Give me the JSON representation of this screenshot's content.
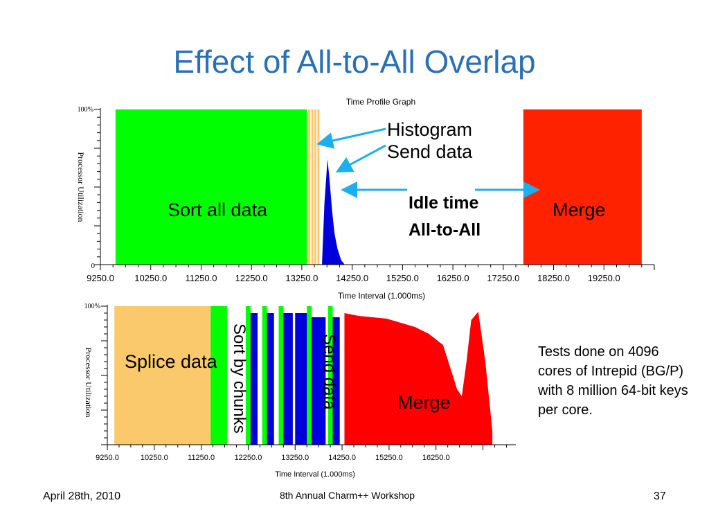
{
  "slide": {
    "title": "Effect of All-to-All Overlap",
    "note": "Tests done on 4096 cores of Intrepid (BG/P) with 8 million 64-bit keys per core.",
    "footer_date": "April 28th, 2010",
    "footer_center": "8th Annual Charm++ Workshop",
    "slide_number": "37"
  },
  "colors": {
    "title": "#2870b8",
    "sort": "#00ff00",
    "splice": "#f9c96b",
    "send": "#0000dd",
    "merge": "#ff2200",
    "merge_bottom": "#ff0000",
    "arrow": "#1ab0f0"
  },
  "chart_data": [
    {
      "type": "area",
      "title": "Time Profile Graph",
      "xlabel": "Time Interval (1.000ms)",
      "ylabel": "Processor Utilization",
      "x_ticks": [
        "9250.0",
        "10250.0",
        "11250.0",
        "12250.0",
        "13250.0",
        "14250.0",
        "15250.0",
        "16250.0",
        "17250.0",
        "18250.0",
        "19250.0"
      ],
      "y_ticks": [
        "100%",
        "0"
      ],
      "xlim": [
        9250,
        20250
      ],
      "ylim": [
        0,
        100
      ],
      "series": [
        {
          "name": "Sort all data",
          "color": "#00ff00",
          "segments": [
            [
              9550,
              13350,
              100
            ]
          ]
        },
        {
          "name": "Histogram",
          "color": "#f9c96b",
          "segments": [
            [
              13370,
              13420,
              100
            ],
            [
              13440,
              13480,
              100
            ],
            [
              13500,
              13540,
              100
            ],
            [
              13560,
              13600,
              100
            ]
          ]
        },
        {
          "name": "Send data",
          "color": "#0000dd",
          "peak": [
            [
              13650,
              0
            ],
            [
              13700,
              40
            ],
            [
              13760,
              68
            ],
            [
              13800,
              55
            ],
            [
              13850,
              35
            ],
            [
              13900,
              20
            ],
            [
              13960,
              10
            ],
            [
              14030,
              3
            ],
            [
              14100,
              0
            ]
          ]
        },
        {
          "name": "Merge",
          "color": "#ff2200",
          "segments": [
            [
              17650,
              20000,
              100
            ]
          ]
        }
      ],
      "annotations": {
        "section_left": "Sort all data",
        "histogram": "Histogram",
        "send": "Send data",
        "idle_line1": "Idle time",
        "idle_line2": "All-to-All",
        "section_right": "Merge"
      }
    },
    {
      "type": "area",
      "title": "",
      "xlabel": "Time Interval (1.000ms)",
      "ylabel": "Processor Utilization",
      "x_ticks": [
        "9250.0",
        "10250.0",
        "11250.0",
        "12250.0",
        "13250.0",
        "14250.0",
        "15250.0",
        "16250.0"
      ],
      "y_ticks": [
        "100%"
      ],
      "xlim": [
        9250,
        17950
      ],
      "ylim": [
        0,
        100
      ],
      "series": [
        {
          "name": "Splice data",
          "color": "#f9c96b",
          "segments": [
            [
              9400,
              11450,
              100
            ]
          ]
        },
        {
          "name": "Sort by chunks",
          "color": "#00ff00",
          "segments": [
            [
              11450,
              11800,
              100
            ],
            [
              12200,
              12300,
              100
            ],
            [
              12550,
              12650,
              100
            ],
            [
              12900,
              13000,
              100
            ],
            [
              13500,
              13600,
              100
            ],
            [
              13950,
              14050,
              100
            ]
          ]
        },
        {
          "name": "Send data",
          "color": "#0000dd",
          "segments": [
            [
              12300,
              12450,
              95
            ],
            [
              12650,
              12800,
              95
            ],
            [
              13000,
              13200,
              95
            ],
            [
              13250,
              13500,
              95
            ],
            [
              13600,
              13900,
              92
            ],
            [
              14050,
              14200,
              92
            ]
          ]
        },
        {
          "name": "Merge",
          "color": "#ff0000",
          "profile": [
            [
              14300,
              95
            ],
            [
              14600,
              93
            ],
            [
              14900,
              92
            ],
            [
              15200,
              91
            ],
            [
              15500,
              88
            ],
            [
              15800,
              85
            ],
            [
              16100,
              80
            ],
            [
              16400,
              72
            ],
            [
              16700,
              40
            ],
            [
              16800,
              35
            ],
            [
              16900,
              60
            ],
            [
              17000,
              90
            ],
            [
              17150,
              96
            ],
            [
              17300,
              60
            ],
            [
              17450,
              10
            ]
          ]
        }
      ],
      "annotations": {
        "splice": "Splice data",
        "sort_chunks": "Sort by chunks",
        "send": "Send data",
        "merge": "Merge"
      }
    }
  ]
}
